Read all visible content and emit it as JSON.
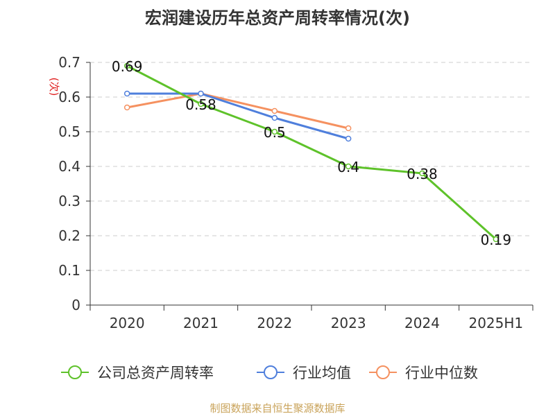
{
  "chart_data": {
    "type": "line",
    "title": "宏润建设历年总资产周转率情况(次)",
    "ylabel": "(次)",
    "categories": [
      "2020",
      "2021",
      "2022",
      "2023",
      "2024",
      "2025H1"
    ],
    "ylim": [
      0,
      0.7
    ],
    "yticks": [
      "0",
      "0.1",
      "0.2",
      "0.3",
      "0.4",
      "0.5",
      "0.6",
      "0.7"
    ],
    "grid": true,
    "legend_position": "bottom",
    "series": [
      {
        "name": "公司总资产周转率",
        "color": "#5ec22a",
        "values": [
          0.69,
          0.58,
          0.5,
          0.4,
          0.38,
          0.19
        ],
        "labels": [
          "0.69",
          "0.58",
          "0.5",
          "0.4",
          "0.38",
          "0.19"
        ]
      },
      {
        "name": "行业均值",
        "color": "#4f7fdc",
        "values": [
          0.61,
          0.61,
          0.54,
          0.48,
          null,
          null
        ]
      },
      {
        "name": "行业中位数",
        "color": "#f59160",
        "values": [
          0.57,
          0.61,
          0.56,
          0.51,
          null,
          null
        ]
      }
    ]
  },
  "source": "制图数据来自恒生聚源数据库"
}
